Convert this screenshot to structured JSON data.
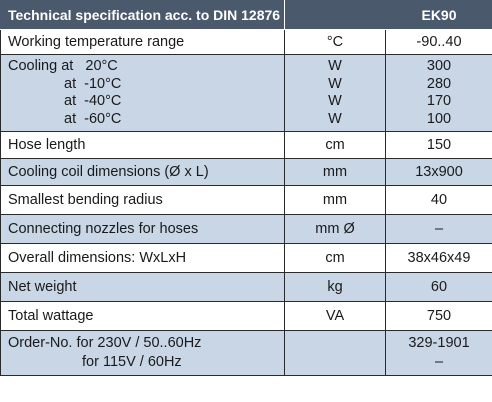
{
  "header": {
    "title": "Technical specification acc. to DIN 12876",
    "unit": "",
    "model": "EK90"
  },
  "rows": {
    "working_temp": {
      "label": "Working temperature range",
      "unit": "°C",
      "value": "-90..40"
    },
    "cooling": {
      "lines": [
        {
          "label": "Cooling at   20°C",
          "unit": "W",
          "value": "300"
        },
        {
          "label": "at  -10°C",
          "unit": "W",
          "value": "280"
        },
        {
          "label": "at  -40°C",
          "unit": "W",
          "value": "170"
        },
        {
          "label": "at  -60°C",
          "unit": "W",
          "value": "100"
        }
      ]
    },
    "hose_length": {
      "label": "Hose length",
      "unit": "cm",
      "value": "150"
    },
    "coil_dims": {
      "label": "Cooling coil dimensions (Ø x L)",
      "unit": "mm",
      "value": "13x900"
    },
    "bending_radius": {
      "label": "Smallest bending radius",
      "unit": "mm",
      "value": "40"
    },
    "nozzles": {
      "label": "Connecting nozzles for hoses",
      "unit": "mm Ø",
      "value": "–"
    },
    "overall_dims": {
      "label": "Overall dimensions:  WxLxH",
      "unit": "cm",
      "value": "38x46x49"
    },
    "net_weight": {
      "label": "Net weight",
      "unit": "kg",
      "value": "60"
    },
    "wattage": {
      "label": "Total wattage",
      "unit": "VA",
      "value": "750"
    },
    "order": {
      "label1": "Order-No. for 230V / 50..60Hz",
      "label2": "for 115V / 60Hz",
      "value1": "329-1901",
      "value2": "–"
    }
  }
}
